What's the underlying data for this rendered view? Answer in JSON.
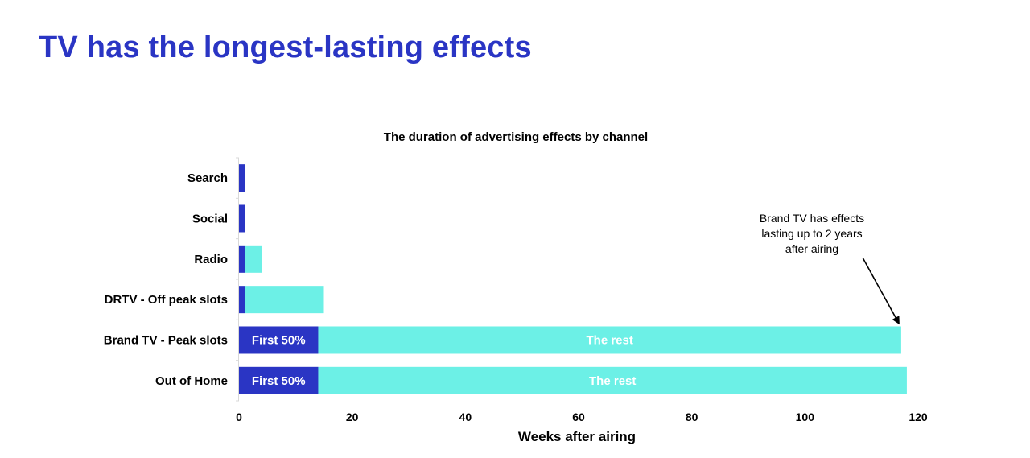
{
  "page_title": "TV has the longest-lasting effects",
  "chart_data": {
    "type": "bar",
    "orientation": "horizontal",
    "stacked": true,
    "title": "The duration of advertising effects by channel",
    "xlabel": "Weeks after airing",
    "ylabel": "",
    "xlim": [
      0,
      120
    ],
    "xticks": [
      0,
      20,
      40,
      60,
      80,
      100,
      120
    ],
    "categories": [
      "Search",
      "Social",
      "Radio",
      "DRTV - Off peak slots",
      "Brand TV - Peak slots",
      "Out of Home"
    ],
    "series": [
      {
        "values": [
          1,
          1,
          1,
          1,
          14,
          14
        ],
        "color": "#2A35C4"
      },
      {
        "values": [
          0,
          0,
          3,
          14,
          103,
          104
        ],
        "color": "#6CF0E6"
      }
    ],
    "bar_labels": [
      [
        "",
        "",
        "",
        "",
        "First 50%",
        "First 50%"
      ],
      [
        "",
        "",
        "",
        "",
        "The rest",
        "The rest"
      ]
    ],
    "annotation": {
      "lines": [
        "Brand TV has effects",
        "lasting up to 2 years",
        "after airing"
      ],
      "points_to": {
        "category": "Brand TV - Peak slots",
        "x": 117
      }
    },
    "grid": false,
    "legend": "none"
  }
}
